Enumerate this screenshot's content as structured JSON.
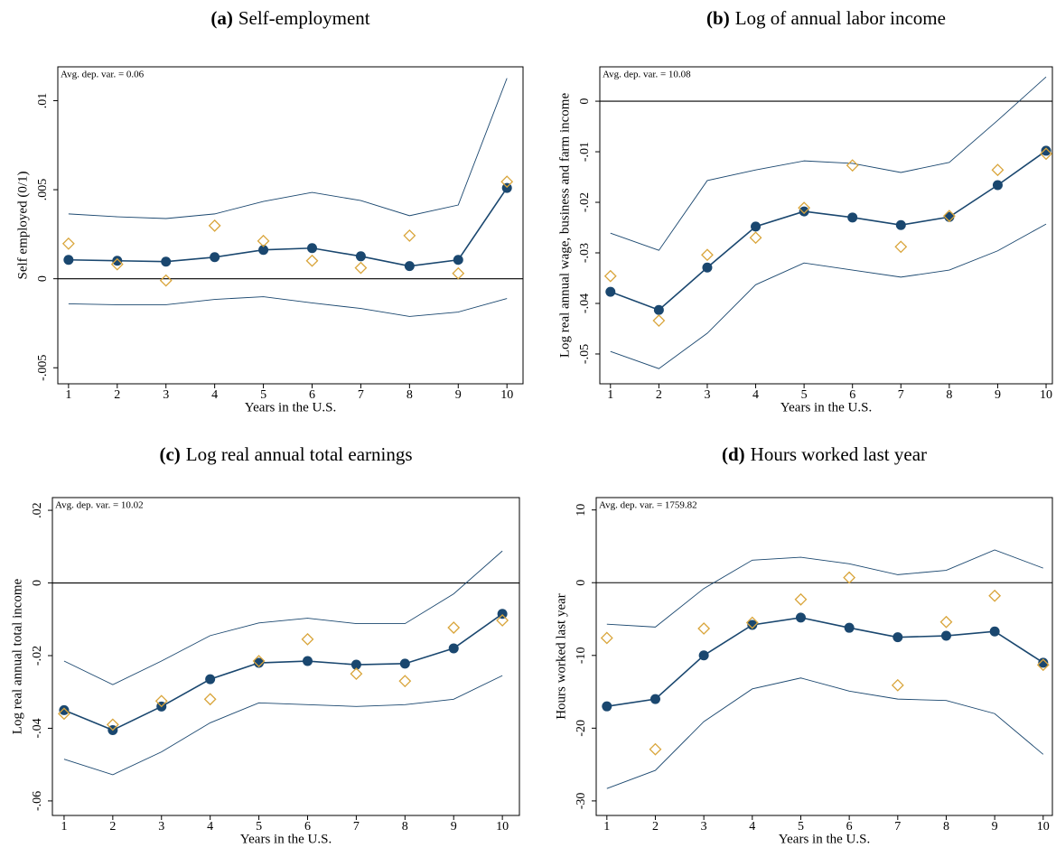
{
  "chart_data": [
    {
      "type": "line",
      "label": "(a)",
      "title": "Self-employment",
      "annotation": "Avg. dep. var. = 0.06",
      "xlabel": "Years in the U.S.",
      "ylabel": "Self employed (0/1)",
      "x": [
        1,
        2,
        3,
        4,
        5,
        6,
        7,
        8,
        9,
        10
      ],
      "xlim": [
        0.78,
        10.33
      ],
      "xticks": [
        1,
        2,
        3,
        4,
        5,
        6,
        7,
        8,
        9,
        10
      ],
      "ylim": [
        -0.0059,
        0.0119
      ],
      "yticks": [
        {
          "value": -0.005,
          "label": "-.005"
        },
        0,
        {
          "value": 0.005,
          "label": ".005"
        },
        {
          "value": 0.01,
          "label": ".01"
        }
      ],
      "hline": 0,
      "series": [
        {
          "color": "#1a476f",
          "marker": "circle",
          "line": true,
          "line_width": 1.6,
          "values": [
            0.00106,
            0.00101,
            0.00096,
            0.00121,
            0.00162,
            0.00172,
            0.00126,
            0.00071,
            0.00106,
            0.0051
          ]
        },
        {
          "color": "#1a476f",
          "marker": "none",
          "line": true,
          "line_width": 0.9,
          "values": [
            0.00364,
            0.00348,
            0.00338,
            0.00364,
            0.00434,
            0.00485,
            0.00439,
            0.00354,
            0.00414,
            0.01126
          ]
        },
        {
          "color": "#1a476f",
          "marker": "none",
          "line": true,
          "line_width": 0.9,
          "values": [
            -0.00141,
            -0.00146,
            -0.00146,
            -0.00116,
            -0.00101,
            -0.00136,
            -0.00167,
            -0.00212,
            -0.00187,
            -0.00111
          ]
        },
        {
          "color": "#d9a53b",
          "marker": "diamond",
          "line": false,
          "values": [
            0.00197,
            0.00081,
            -0.0001,
            0.00298,
            0.00212,
            0.00101,
            0.00061,
            0.00242,
            0.0003,
            0.00545
          ]
        }
      ]
    },
    {
      "type": "line",
      "label": "(b)",
      "title": "Log of annual labor income",
      "annotation": "Avg. dep. var. = 10.08",
      "xlabel": "Years in the U.S.",
      "ylabel": "Log real annual wage, business and farm income",
      "x": [
        1,
        2,
        3,
        4,
        5,
        6,
        7,
        8,
        9,
        10
      ],
      "xlim": [
        0.78,
        10.13
      ],
      "xticks": [
        1,
        2,
        3,
        4,
        5,
        6,
        7,
        8,
        9,
        10
      ],
      "ylim": [
        -0.0559,
        0.0068
      ],
      "yticks": [
        {
          "value": -0.05,
          "label": "-.05"
        },
        {
          "value": -0.04,
          "label": "-.04"
        },
        {
          "value": -0.03,
          "label": "-.03"
        },
        {
          "value": -0.02,
          "label": "-.02"
        },
        {
          "value": -0.01,
          "label": "-.01"
        },
        0
      ],
      "hline": 0,
      "series": [
        {
          "color": "#1a476f",
          "marker": "circle",
          "line": true,
          "line_width": 1.6,
          "values": [
            -0.0377,
            -0.0413,
            -0.0329,
            -0.0248,
            -0.0218,
            -0.023,
            -0.0245,
            -0.0229,
            -0.0166,
            -0.0098
          ]
        },
        {
          "color": "#1a476f",
          "marker": "none",
          "line": true,
          "line_width": 0.9,
          "values": [
            -0.0261,
            -0.0295,
            -0.0157,
            -0.0136,
            -0.0118,
            -0.0123,
            -0.0141,
            -0.0121,
            -0.0038,
            0.0048
          ]
        },
        {
          "color": "#1a476f",
          "marker": "none",
          "line": true,
          "line_width": 0.9,
          "values": [
            -0.0495,
            -0.0529,
            -0.0459,
            -0.0363,
            -0.032,
            -0.0334,
            -0.0348,
            -0.0334,
            -0.0296,
            -0.0243
          ]
        },
        {
          "color": "#d9a53b",
          "marker": "diamond",
          "line": false,
          "values": [
            -0.0346,
            -0.0434,
            -0.0304,
            -0.027,
            -0.0211,
            -0.0127,
            -0.0288,
            -0.0227,
            -0.0136,
            -0.0104
          ]
        }
      ]
    },
    {
      "type": "line",
      "label": "(c)",
      "title": "Log real annual total earnings",
      "annotation": "Avg. dep. var. = 10.02",
      "xlabel": "Years in the U.S.",
      "ylabel": "Log real annual total income",
      "x": [
        1,
        2,
        3,
        4,
        5,
        6,
        7,
        8,
        9,
        10
      ],
      "xlim": [
        0.76,
        10.35
      ],
      "xticks": [
        1,
        2,
        3,
        4,
        5,
        6,
        7,
        8,
        9,
        10
      ],
      "ylim": [
        -0.064,
        0.0235
      ],
      "yticks": [
        {
          "value": -0.06,
          "label": "-.06"
        },
        {
          "value": -0.04,
          "label": "-.04"
        },
        {
          "value": -0.02,
          "label": "-.02"
        },
        0,
        {
          "value": 0.02,
          "label": ".02"
        }
      ],
      "hline": 0,
      "series": [
        {
          "color": "#1a476f",
          "marker": "circle",
          "line": true,
          "line_width": 1.6,
          "values": [
            -0.035,
            -0.0405,
            -0.034,
            -0.0265,
            -0.022,
            -0.0215,
            -0.0225,
            -0.0222,
            -0.018,
            -0.0085
          ]
        },
        {
          "color": "#1a476f",
          "marker": "none",
          "line": true,
          "line_width": 0.9,
          "values": [
            -0.0215,
            -0.028,
            -0.0215,
            -0.0145,
            -0.011,
            -0.0097,
            -0.0112,
            -0.0112,
            -0.003,
            0.0088
          ]
        },
        {
          "color": "#1a476f",
          "marker": "none",
          "line": true,
          "line_width": 0.9,
          "values": [
            -0.0485,
            -0.0528,
            -0.0465,
            -0.0385,
            -0.033,
            -0.0335,
            -0.034,
            -0.0335,
            -0.032,
            -0.0255
          ]
        },
        {
          "color": "#d9a53b",
          "marker": "diamond",
          "line": false,
          "values": [
            -0.036,
            -0.039,
            -0.0325,
            -0.032,
            -0.0215,
            -0.0155,
            -0.025,
            -0.027,
            -0.0123,
            -0.0103
          ]
        }
      ]
    },
    {
      "type": "line",
      "label": "(d)",
      "title": "Hours worked last year",
      "annotation": "Avg. dep. var. = 1759.82",
      "xlabel": "Years in the U.S.",
      "ylabel": "Hours worked last year",
      "x": [
        1,
        2,
        3,
        4,
        5,
        6,
        7,
        8,
        9,
        10
      ],
      "xlim": [
        0.78,
        10.19
      ],
      "xticks": [
        1,
        2,
        3,
        4,
        5,
        6,
        7,
        8,
        9,
        10
      ],
      "ylim": [
        -32,
        11.7
      ],
      "yticks": [
        -30,
        -20,
        -10,
        0,
        10
      ],
      "hline": 0,
      "series": [
        {
          "color": "#1a476f",
          "marker": "circle",
          "line": true,
          "line_width": 1.6,
          "values": [
            -17,
            -16,
            -10,
            -5.8,
            -4.8,
            -6.2,
            -7.5,
            -7.3,
            -6.7,
            -11
          ]
        },
        {
          "color": "#1a476f",
          "marker": "none",
          "line": true,
          "line_width": 0.9,
          "values": [
            -5.7,
            -6.1,
            -0.8,
            3.1,
            3.5,
            2.6,
            1.1,
            1.7,
            4.5,
            2.0
          ]
        },
        {
          "color": "#1a476f",
          "marker": "none",
          "line": true,
          "line_width": 0.9,
          "values": [
            -28.3,
            -25.8,
            -19.1,
            -14.6,
            -13.1,
            -14.9,
            -16.0,
            -16.2,
            -18.0,
            -23.6
          ]
        },
        {
          "color": "#d9a53b",
          "marker": "diamond",
          "line": false,
          "values": [
            -7.6,
            -22.9,
            -6.3,
            -5.5,
            -2.3,
            0.7,
            -14.1,
            -5.4,
            -1.8,
            -11.3
          ]
        }
      ]
    }
  ]
}
